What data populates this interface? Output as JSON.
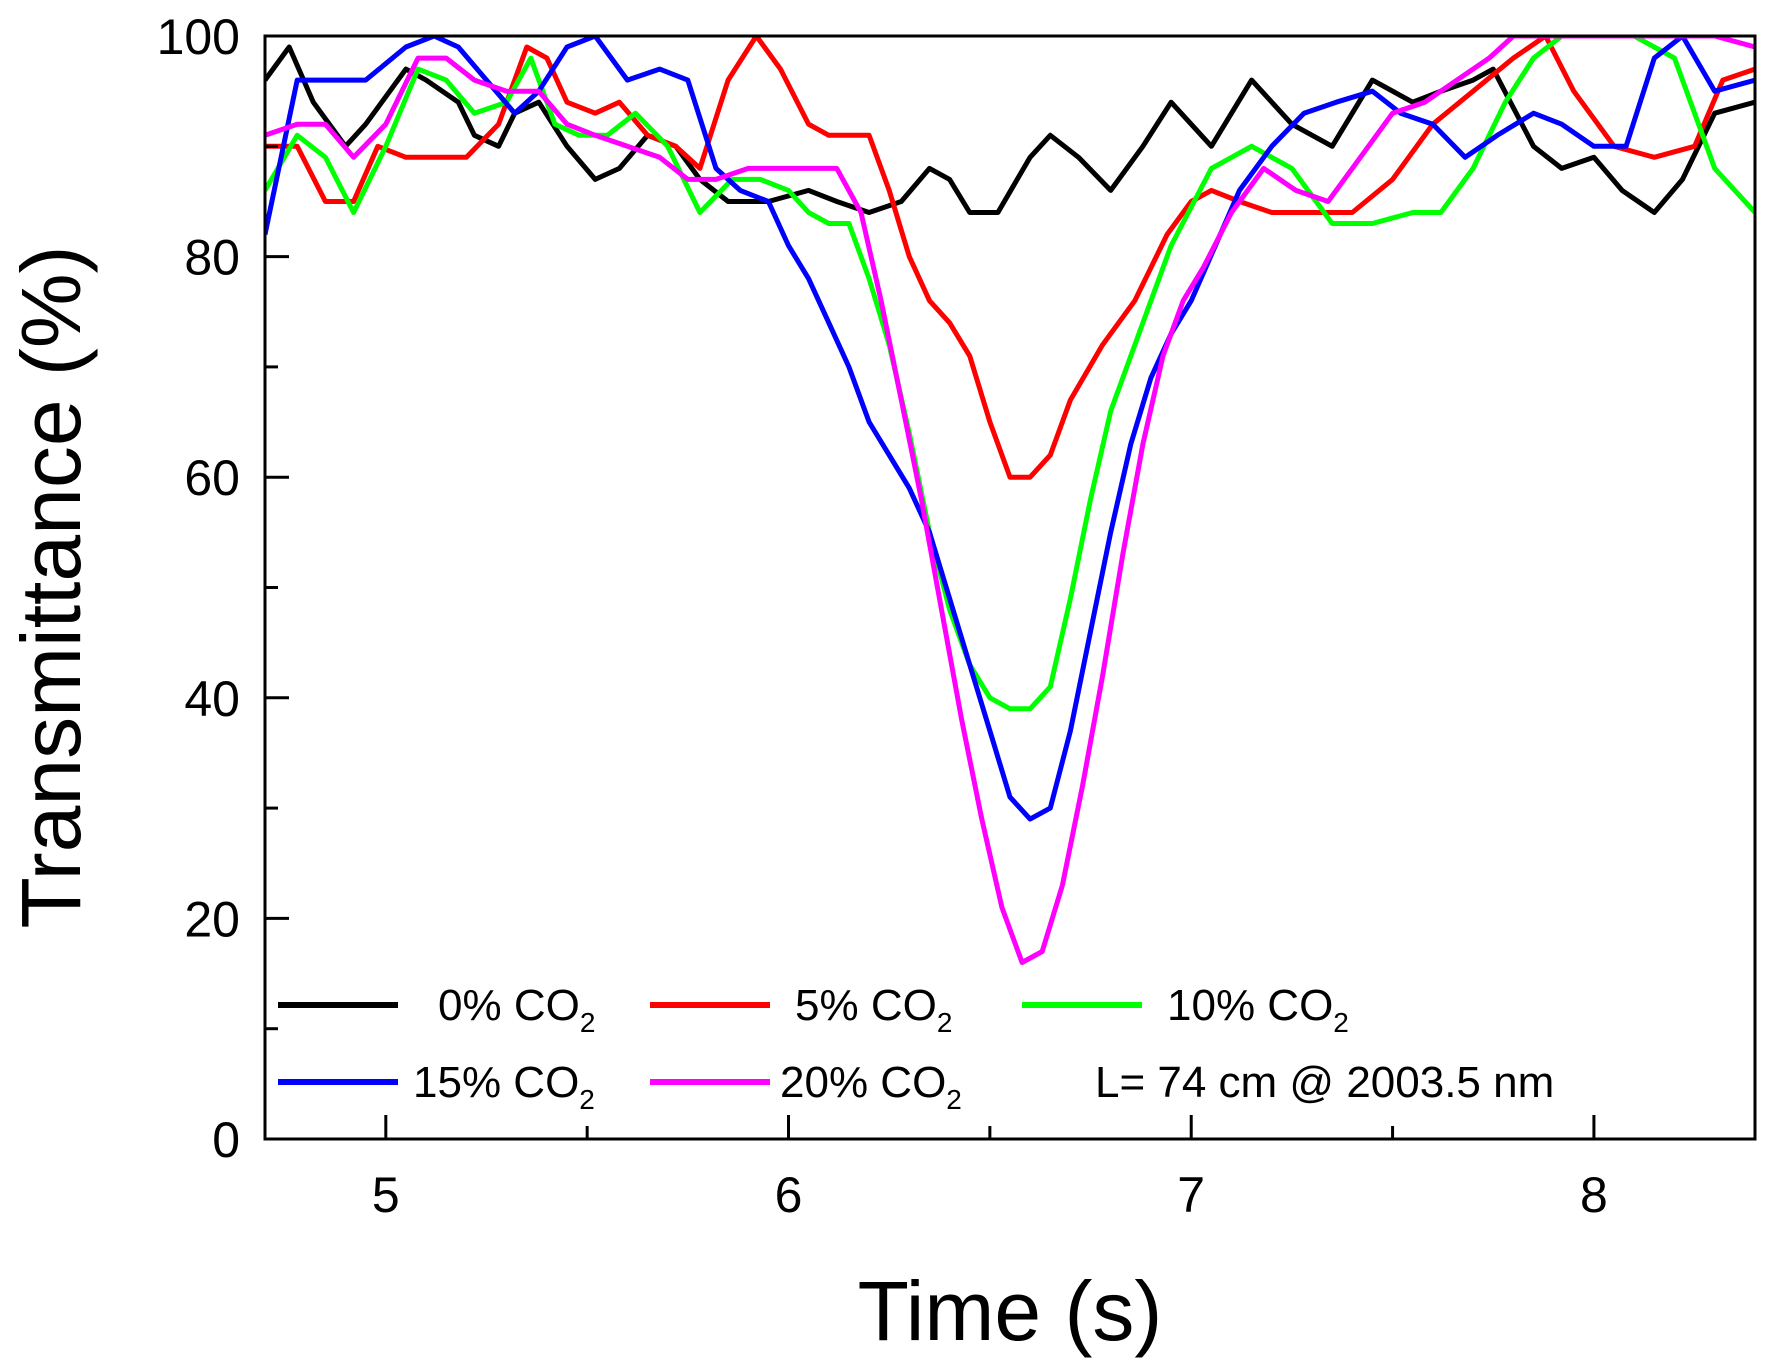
{
  "chart_data": {
    "type": "line",
    "title": "",
    "xlabel": "Time (s)",
    "ylabel": "Transmittance (%)",
    "xlim": [
      4.7,
      8.4
    ],
    "ylim": [
      0,
      100
    ],
    "xticks": [
      5,
      6,
      7,
      8
    ],
    "xtick_labels": [
      "5",
      "6",
      "7",
      "8"
    ],
    "yticks": [
      0,
      20,
      40,
      60,
      80,
      100
    ],
    "ytick_labels": [
      "0",
      "20",
      "40",
      "60",
      "80",
      "100"
    ],
    "grid": false,
    "legend_position": "bottom-left",
    "annotation": "L= 74 cm @ 2003.5 nm",
    "series": [
      {
        "name": "0% CO2",
        "label_main": "0% CO",
        "label_sub": "2",
        "color": "#000000",
        "x": [
          4.7,
          4.76,
          4.82,
          4.9,
          4.95,
          5.05,
          5.1,
          5.18,
          5.22,
          5.28,
          5.32,
          5.38,
          5.45,
          5.52,
          5.58,
          5.65,
          5.72,
          5.78,
          5.85,
          5.95,
          6.05,
          6.12,
          6.2,
          6.28,
          6.35,
          6.4,
          6.45,
          6.52,
          6.6,
          6.65,
          6.72,
          6.8,
          6.88,
          6.95,
          7.05,
          7.15,
          7.25,
          7.35,
          7.45,
          7.55,
          7.62,
          7.7,
          7.75,
          7.85,
          7.92,
          8.0,
          8.07,
          8.15,
          8.22,
          8.3,
          8.4
        ],
        "y": [
          96,
          99,
          94,
          90,
          92,
          97,
          96,
          94,
          91,
          90,
          93,
          94,
          90,
          87,
          88,
          91,
          90,
          87,
          85,
          85,
          86,
          85,
          84,
          85,
          88,
          87,
          84,
          84,
          89,
          91,
          89,
          86,
          90,
          94,
          90,
          96,
          92,
          90,
          96,
          94,
          95,
          96,
          97,
          90,
          88,
          89,
          86,
          84,
          87,
          93,
          94
        ]
      },
      {
        "name": "5% CO2",
        "label_main": "5% CO",
        "label_sub": "2",
        "color": "#ff0000",
        "x": [
          4.7,
          4.78,
          4.85,
          4.92,
          4.98,
          5.05,
          5.12,
          5.2,
          5.28,
          5.35,
          5.4,
          5.45,
          5.52,
          5.58,
          5.65,
          5.72,
          5.78,
          5.85,
          5.92,
          5.98,
          6.05,
          6.1,
          6.15,
          6.2,
          6.25,
          6.3,
          6.35,
          6.4,
          6.45,
          6.5,
          6.55,
          6.6,
          6.65,
          6.7,
          6.78,
          6.86,
          6.94,
          7.0,
          7.05,
          7.12,
          7.2,
          7.3,
          7.4,
          7.5,
          7.6,
          7.7,
          7.8,
          7.88,
          7.95,
          8.05,
          8.15,
          8.25,
          8.32,
          8.4
        ],
        "y": [
          90,
          90,
          85,
          85,
          90,
          89,
          89,
          89,
          92,
          99,
          98,
          94,
          93,
          94,
          91,
          90,
          88,
          96,
          100,
          97,
          92,
          91,
          91,
          91,
          86,
          80,
          76,
          74,
          71,
          65,
          60,
          60,
          62,
          67,
          72,
          76,
          82,
          85,
          86,
          85,
          84,
          84,
          84,
          87,
          92,
          95,
          98,
          100,
          95,
          90,
          89,
          90,
          96,
          97
        ]
      },
      {
        "name": "10% CO2",
        "label_main": "10% CO",
        "label_sub": "2",
        "color": "#00ff00",
        "x": [
          4.7,
          4.78,
          4.85,
          4.92,
          5.0,
          5.08,
          5.15,
          5.22,
          5.3,
          5.36,
          5.42,
          5.48,
          5.55,
          5.62,
          5.7,
          5.78,
          5.86,
          5.93,
          6.0,
          6.05,
          6.1,
          6.15,
          6.2,
          6.25,
          6.3,
          6.35,
          6.4,
          6.45,
          6.5,
          6.55,
          6.6,
          6.65,
          6.7,
          6.75,
          6.8,
          6.88,
          6.95,
          7.05,
          7.15,
          7.25,
          7.35,
          7.45,
          7.55,
          7.62,
          7.7,
          7.78,
          7.85,
          7.92,
          8.0,
          8.1,
          8.2,
          8.3,
          8.4
        ],
        "y": [
          86,
          91,
          89,
          84,
          90,
          97,
          96,
          93,
          94,
          98,
          92,
          91,
          91,
          93,
          90,
          84,
          87,
          87,
          86,
          84,
          83,
          83,
          78,
          72,
          64,
          55,
          48,
          43,
          40,
          39,
          39,
          41,
          49,
          58,
          66,
          74,
          81,
          88,
          90,
          88,
          83,
          83,
          84,
          84,
          88,
          94,
          98,
          100,
          100,
          100,
          98,
          88,
          84
        ]
      },
      {
        "name": "15% CO2",
        "label_main": "15% CO",
        "label_sub": "2",
        "color": "#0000ff",
        "x": [
          4.7,
          4.78,
          4.85,
          4.95,
          5.05,
          5.12,
          5.18,
          5.25,
          5.32,
          5.38,
          5.45,
          5.52,
          5.6,
          5.68,
          5.75,
          5.82,
          5.88,
          5.95,
          6.0,
          6.05,
          6.1,
          6.15,
          6.2,
          6.25,
          6.3,
          6.35,
          6.4,
          6.45,
          6.5,
          6.55,
          6.6,
          6.65,
          6.7,
          6.75,
          6.8,
          6.85,
          6.9,
          6.95,
          7.0,
          7.06,
          7.12,
          7.2,
          7.28,
          7.36,
          7.45,
          7.52,
          7.6,
          7.68,
          7.76,
          7.85,
          7.92,
          8.0,
          8.08,
          8.15,
          8.22,
          8.3,
          8.4
        ],
        "y": [
          82,
          96,
          96,
          96,
          99,
          100,
          99,
          96,
          93,
          95,
          99,
          100,
          96,
          97,
          96,
          88,
          86,
          85,
          81,
          78,
          74,
          70,
          65,
          62,
          59,
          55,
          49,
          43,
          37,
          31,
          29,
          30,
          37,
          46,
          55,
          63,
          69,
          73,
          76,
          81,
          86,
          90,
          93,
          94,
          95,
          93,
          92,
          89,
          91,
          93,
          92,
          90,
          90,
          98,
          100,
          95,
          96
        ]
      },
      {
        "name": "20% CO2",
        "label_main": "20% CO",
        "label_sub": "2",
        "color": "#ff00ff",
        "x": [
          4.7,
          4.78,
          4.85,
          4.92,
          5.0,
          5.08,
          5.15,
          5.22,
          5.3,
          5.38,
          5.45,
          5.52,
          5.6,
          5.68,
          5.75,
          5.82,
          5.9,
          5.98,
          6.05,
          6.12,
          6.18,
          6.23,
          6.28,
          6.33,
          6.38,
          6.43,
          6.48,
          6.53,
          6.58,
          6.63,
          6.68,
          6.73,
          6.78,
          6.83,
          6.88,
          6.93,
          6.98,
          7.03,
          7.1,
          7.18,
          7.26,
          7.34,
          7.42,
          7.5,
          7.58,
          7.66,
          7.74,
          7.8,
          7.9,
          8.0,
          8.1,
          8.2,
          8.3,
          8.4
        ],
        "y": [
          91,
          92,
          92,
          89,
          92,
          98,
          98,
          96,
          95,
          95,
          92,
          91,
          90,
          89,
          87,
          87,
          88,
          88,
          88,
          88,
          84,
          76,
          67,
          58,
          48,
          38,
          29,
          21,
          16,
          17,
          23,
          32,
          42,
          53,
          63,
          71,
          76,
          79,
          84,
          88,
          86,
          85,
          89,
          93,
          94,
          96,
          98,
          100,
          100,
          100,
          100,
          100,
          100,
          99
        ]
      }
    ]
  }
}
